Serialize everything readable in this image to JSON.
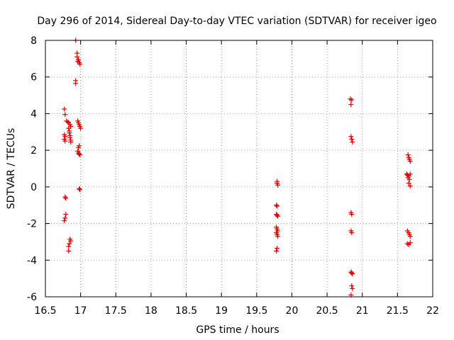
{
  "chart_data": {
    "type": "scatter",
    "title": "Day 296 of 2014, Sidereal Day-to-day VTEC variation (SDTVAR) for receiver igeo",
    "xlabel": "GPS time / hours",
    "ylabel": "SDTVAR / TECUs",
    "xlim": [
      16.5,
      22
    ],
    "ylim": [
      -6,
      8
    ],
    "xticks": [
      "16.5",
      "17",
      "17.5",
      "18",
      "18.5",
      "19",
      "19.5",
      "20",
      "20.5",
      "21",
      "21.5",
      "22"
    ],
    "yticks": [
      "-6",
      "-4",
      "-2",
      "0",
      "2",
      "4",
      "6",
      "8"
    ],
    "grid": true,
    "point_color": "#e00000",
    "series": [
      {
        "name": "SDTVAR",
        "points": [
          [
            16.77,
            4.25
          ],
          [
            16.78,
            3.95
          ],
          [
            16.77,
            2.85
          ],
          [
            16.78,
            2.75
          ],
          [
            16.77,
            2.6
          ],
          [
            16.78,
            2.5
          ],
          [
            16.78,
            -0.55
          ],
          [
            16.79,
            -0.62
          ],
          [
            16.79,
            -1.5
          ],
          [
            16.78,
            -1.7
          ],
          [
            16.77,
            -1.85
          ],
          [
            16.8,
            3.6
          ],
          [
            16.82,
            3.55
          ],
          [
            16.83,
            3.5
          ],
          [
            16.83,
            3.2
          ],
          [
            16.84,
            3.05
          ],
          [
            16.84,
            2.95
          ],
          [
            16.85,
            2.8
          ],
          [
            16.85,
            2.7
          ],
          [
            16.86,
            2.55
          ],
          [
            16.86,
            2.45
          ],
          [
            16.85,
            3.4
          ],
          [
            16.86,
            3.3
          ],
          [
            16.85,
            -2.85
          ],
          [
            16.86,
            -2.95
          ],
          [
            16.84,
            -3.1
          ],
          [
            16.83,
            -3.25
          ],
          [
            16.83,
            -3.5
          ],
          [
            16.93,
            8.0
          ],
          [
            16.95,
            7.3
          ],
          [
            16.95,
            7.1
          ],
          [
            16.97,
            6.95
          ],
          [
            16.96,
            6.85
          ],
          [
            16.98,
            6.8
          ],
          [
            16.99,
            6.7
          ],
          [
            16.93,
            5.8
          ],
          [
            16.93,
            5.65
          ],
          [
            16.96,
            3.6
          ],
          [
            16.97,
            3.5
          ],
          [
            16.98,
            3.4
          ],
          [
            16.99,
            3.3
          ],
          [
            17.0,
            3.2
          ],
          [
            16.98,
            2.25
          ],
          [
            16.97,
            2.15
          ],
          [
            16.96,
            1.95
          ],
          [
            16.97,
            1.85
          ],
          [
            16.98,
            1.8
          ],
          [
            16.99,
            1.75
          ],
          [
            16.98,
            -0.1
          ],
          [
            16.99,
            -0.15
          ],
          [
            19.79,
            0.3
          ],
          [
            19.79,
            0.2
          ],
          [
            19.8,
            0.1
          ],
          [
            19.78,
            -1.0
          ],
          [
            19.79,
            -1.05
          ],
          [
            19.78,
            -1.5
          ],
          [
            19.79,
            -1.55
          ],
          [
            19.8,
            -1.6
          ],
          [
            19.78,
            -2.2
          ],
          [
            19.79,
            -2.3
          ],
          [
            19.8,
            -2.4
          ],
          [
            19.78,
            -2.5
          ],
          [
            19.79,
            -2.6
          ],
          [
            19.8,
            -2.7
          ],
          [
            19.79,
            -3.35
          ],
          [
            19.78,
            -3.5
          ],
          [
            20.83,
            4.8
          ],
          [
            20.85,
            4.75
          ],
          [
            20.84,
            4.5
          ],
          [
            20.84,
            2.75
          ],
          [
            20.85,
            2.6
          ],
          [
            20.86,
            2.45
          ],
          [
            20.84,
            -1.4
          ],
          [
            20.85,
            -1.5
          ],
          [
            20.84,
            -2.4
          ],
          [
            20.85,
            -2.5
          ],
          [
            20.84,
            -4.65
          ],
          [
            20.85,
            -4.7
          ],
          [
            20.86,
            -4.75
          ],
          [
            20.85,
            -5.4
          ],
          [
            20.86,
            -5.55
          ],
          [
            20.84,
            -5.9
          ],
          [
            21.65,
            1.75
          ],
          [
            21.66,
            1.6
          ],
          [
            21.67,
            1.5
          ],
          [
            21.68,
            1.4
          ],
          [
            21.63,
            0.7
          ],
          [
            21.64,
            0.65
          ],
          [
            21.66,
            0.6
          ],
          [
            21.68,
            0.7
          ],
          [
            21.65,
            0.5
          ],
          [
            21.67,
            0.4
          ],
          [
            21.66,
            0.2
          ],
          [
            21.68,
            0.05
          ],
          [
            21.64,
            -2.4
          ],
          [
            21.66,
            -2.5
          ],
          [
            21.67,
            -2.6
          ],
          [
            21.68,
            -2.7
          ],
          [
            21.64,
            -3.1
          ],
          [
            21.66,
            -3.15
          ],
          [
            21.68,
            -3.05
          ]
        ]
      }
    ]
  }
}
